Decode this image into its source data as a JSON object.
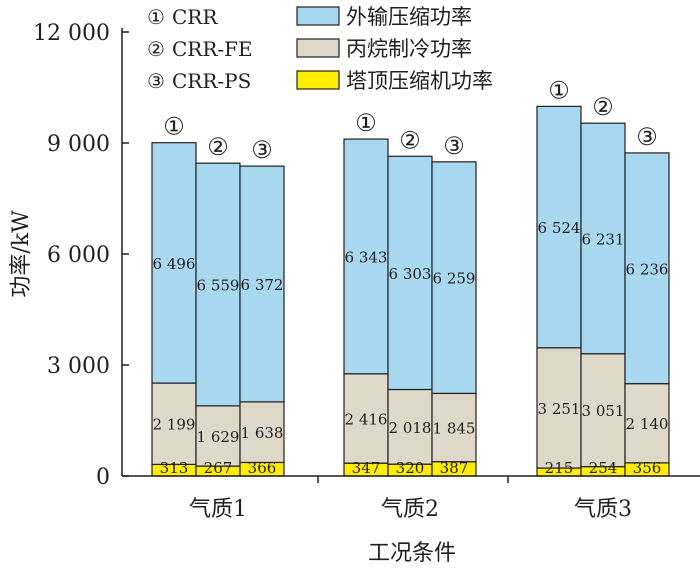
{
  "chart_data": {
    "type": "bar",
    "stacked": true,
    "categories": [
      "气质1",
      "气质2",
      "气质3"
    ],
    "cases": [
      {
        "marker": "①",
        "name": "CRR"
      },
      {
        "marker": "②",
        "name": "CRR-FE"
      },
      {
        "marker": "③",
        "name": "CRR-PS"
      }
    ],
    "series": [
      {
        "name": "塔顶压缩机功率",
        "color": "#ffed00",
        "values": [
          [
            313,
            267,
            366
          ],
          [
            347,
            320,
            387
          ],
          [
            215,
            254,
            356
          ]
        ],
        "labels": [
          [
            "313",
            "267",
            "366"
          ],
          [
            "347",
            "320",
            "387"
          ],
          [
            "215",
            "254",
            "356"
          ]
        ]
      },
      {
        "name": "丙烷制冷功率",
        "color": "#ddd8c8",
        "values": [
          [
            2199,
            1629,
            1638
          ],
          [
            2416,
            2018,
            1845
          ],
          [
            3251,
            3051,
            2140
          ]
        ],
        "labels": [
          [
            "2 199",
            "1 629",
            "1 638"
          ],
          [
            "2 416",
            "2 018",
            "1 845"
          ],
          [
            "3 251",
            "3 051",
            "2 140"
          ]
        ]
      },
      {
        "name": "外输压缩功率",
        "color": "#a8d8f0",
        "values": [
          [
            6496,
            6559,
            6372
          ],
          [
            6343,
            6303,
            6259
          ],
          [
            6524,
            6231,
            6236
          ]
        ],
        "labels": [
          [
            "6 496",
            "6 559",
            "6 372"
          ],
          [
            "6 343",
            "6 303",
            "6 259"
          ],
          [
            "6 524",
            "6 231",
            "6 236"
          ]
        ]
      }
    ],
    "legend_order": [
      2,
      1,
      0
    ],
    "xlabel": "工况条件",
    "ylabel": "功率/kW",
    "ylim": [
      0,
      12000
    ],
    "yticks": [
      0,
      3000,
      6000,
      9000,
      12000
    ],
    "ytick_labels": [
      "0",
      "3 000",
      "6 000",
      "9 000",
      "12 000"
    ],
    "grid": false,
    "legend_position": "top"
  }
}
